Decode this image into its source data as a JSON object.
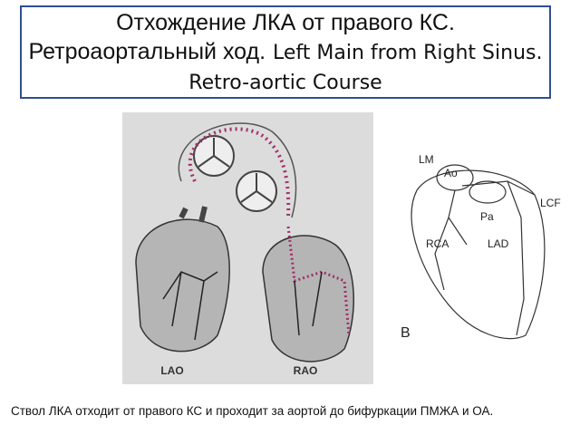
{
  "header": {
    "title_ru": "Отхождение ЛКА от правого КС. Ретроаортальный ход.",
    "title_en": "Left Main from Right Sinus. Retro-aortic Course"
  },
  "figure_left": {
    "labels": [
      "LAO",
      "RAO"
    ]
  },
  "figure_right": {
    "labels": [
      "LM",
      "Ao",
      "Pa",
      "LCF",
      "RCA",
      "LAD",
      "B"
    ]
  },
  "caption": "Ствол ЛКА отходит от правого КС и проходит за аортой до бифуркации ПМЖА и ОА."
}
